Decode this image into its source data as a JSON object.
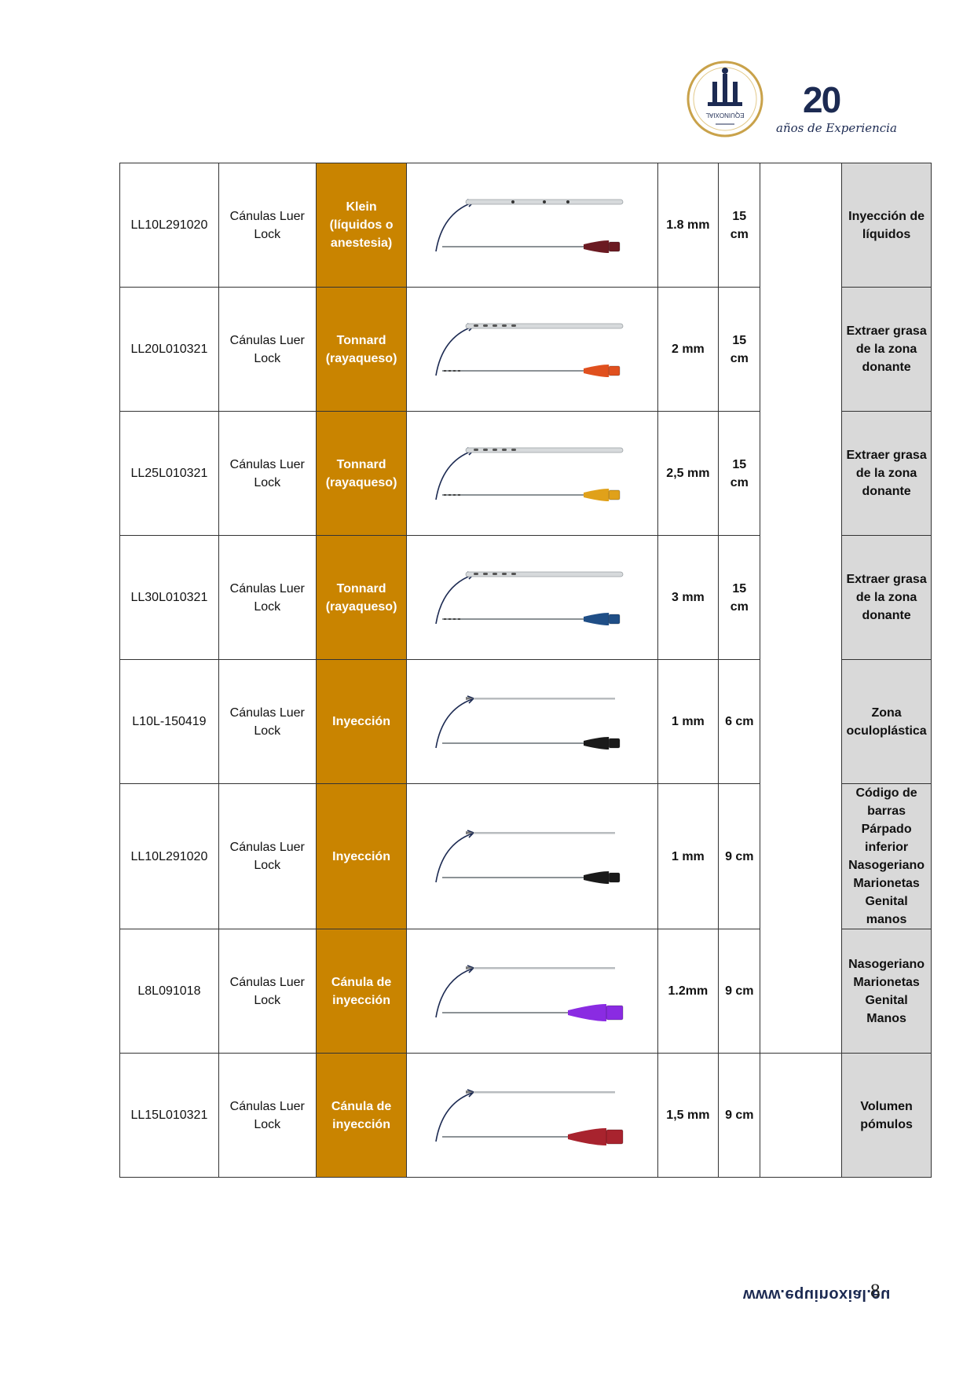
{
  "header": {
    "logo_seal_text": "EQUINOXIAL",
    "logo_years": "20",
    "logo_years_text": "años de Experiencia",
    "colors": {
      "navy": "#1c2a52",
      "gold": "#c9a24a"
    }
  },
  "table": {
    "colors": {
      "model_bg": "#c98400",
      "use_bg": "#d9d9d9"
    },
    "rows": [
      {
        "code": "LL10L291020",
        "type": "Cánulas Luer Lock",
        "model": "Klein (líquidos o anestesia)",
        "image": "cannula-klein-icon",
        "handle_color": "#6b1a22",
        "diameter": "1.8 mm",
        "length": "15 cm",
        "use": "Inyección de líquidos"
      },
      {
        "code": "LL20L010321",
        "type": "Cánulas Luer Lock",
        "model": "Tonnard (rayaqueso)",
        "image": "cannula-tonnard-icon",
        "handle_color": "#e0501e",
        "diameter": "2 mm",
        "length": "15 cm",
        "use": "Extraer grasa de la zona donante"
      },
      {
        "code": "LL25L010321",
        "type": "Cánulas Luer Lock",
        "model": "Tonnard (rayaqueso)",
        "image": "cannula-tonnard-icon",
        "handle_color": "#e0a11a",
        "diameter": "2,5 mm",
        "length": "15 cm",
        "use": "Extraer grasa de la zona donante"
      },
      {
        "code": "LL30L010321",
        "type": "Cánulas Luer Lock",
        "model": "Tonnard (rayaqueso)",
        "image": "cannula-tonnard-icon",
        "handle_color": "#1f4e86",
        "diameter": "3 mm",
        "length": "15 cm",
        "use": "Extraer grasa de la zona donante"
      },
      {
        "code": "L10L-150419",
        "type": "Cánulas Luer Lock",
        "model": "Inyección",
        "image": "cannula-injection-icon",
        "handle_color": "#1a1a1a",
        "diameter": "1 mm",
        "length": "6 cm",
        "use": "Zona oculoplástica"
      },
      {
        "code": "LL10L291020",
        "type": "Cánulas Luer Lock",
        "model": "Inyección",
        "image": "cannula-injection-icon",
        "handle_color": "#1a1a1a",
        "diameter": "1 mm",
        "length": "9 cm",
        "use": "Código de barras Párpado inferior Nasogeriano Marionetas Genital manos"
      },
      {
        "code": "L8L091018",
        "type": "Cánulas Luer Lock",
        "model": "Cánula de inyección",
        "image": "cannula-injection-icon",
        "handle_color": "#8a2be2",
        "diameter": "1.2mm",
        "length": "9 cm",
        "use": "Nasogeriano Marionetas Genital Manos"
      },
      {
        "code": "LL15L010321",
        "type": "Cánulas Luer Lock",
        "model": "Cánula de inyección",
        "image": "cannula-injection-icon",
        "handle_color": "#a8232e",
        "diameter": "1,5 mm",
        "length": "9 cm",
        "use": "Volumen pómulos"
      }
    ]
  },
  "footer": {
    "url": "www.equinoxial.eu",
    "page_number": "8"
  }
}
